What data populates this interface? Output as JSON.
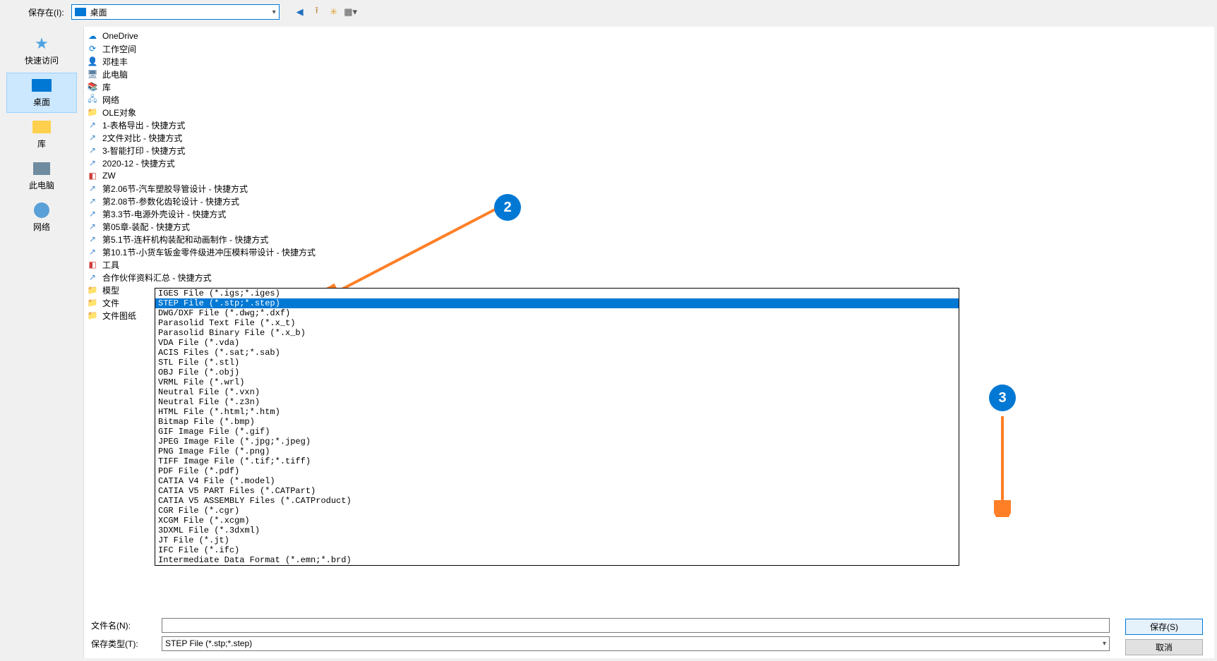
{
  "toolbar": {
    "save_in_label": "保存在(I):",
    "location": "桌面"
  },
  "sidebar": {
    "items": [
      {
        "label": "快速访问",
        "icon": "star",
        "selected": false
      },
      {
        "label": "桌面",
        "icon": "monitor",
        "selected": true
      },
      {
        "label": "库",
        "icon": "folder",
        "selected": false
      },
      {
        "label": "此电脑",
        "icon": "pc",
        "selected": false
      },
      {
        "label": "网络",
        "icon": "network",
        "selected": false
      }
    ]
  },
  "files": [
    {
      "icon": "cloud",
      "name": "OneDrive"
    },
    {
      "icon": "sync",
      "name": "工作空间"
    },
    {
      "icon": "user",
      "name": "邓桂丰"
    },
    {
      "icon": "pc",
      "name": "此电脑"
    },
    {
      "icon": "lib",
      "name": "库"
    },
    {
      "icon": "net",
      "name": "网络"
    },
    {
      "icon": "folder",
      "name": "OLE对象"
    },
    {
      "icon": "shortcut",
      "name": "1-表格导出 - 快捷方式"
    },
    {
      "icon": "shortcut",
      "name": "2文件对比 - 快捷方式"
    },
    {
      "icon": "shortcut",
      "name": "3-智能打印 - 快捷方式"
    },
    {
      "icon": "shortcut",
      "name": "2020-12 - 快捷方式"
    },
    {
      "icon": "app",
      "name": "ZW"
    },
    {
      "icon": "shortcut",
      "name": "第2.06节-汽车塑胶导管设计 - 快捷方式"
    },
    {
      "icon": "shortcut",
      "name": "第2.08节-参数化齿轮设计 - 快捷方式"
    },
    {
      "icon": "shortcut",
      "name": "第3.3节-电源外壳设计 - 快捷方式"
    },
    {
      "icon": "shortcut",
      "name": "第05章-装配 - 快捷方式"
    },
    {
      "icon": "shortcut",
      "name": "第5.1节-连杆机构装配和动画制作 - 快捷方式"
    },
    {
      "icon": "shortcut",
      "name": "第10.1节-小货车钣金零件级进冲压模料带设计 - 快捷方式"
    },
    {
      "icon": "app",
      "name": "工具"
    },
    {
      "icon": "shortcut",
      "name": "合作伙伴资料汇总 - 快捷方式"
    },
    {
      "icon": "folder",
      "name": "模型"
    },
    {
      "icon": "bluefolder",
      "name": "文件"
    },
    {
      "icon": "folder",
      "name": "文件图纸"
    }
  ],
  "dropdown": {
    "selected_index": 1,
    "options": [
      "IGES File (*.igs;*.iges)",
      "STEP File (*.stp;*.step)",
      "DWG/DXF File (*.dwg;*.dxf)",
      "Parasolid Text File (*.x_t)",
      "Parasolid Binary File (*.x_b)",
      "VDA File (*.vda)",
      "ACIS Files (*.sat;*.sab)",
      "STL File (*.stl)",
      "OBJ File (*.obj)",
      "VRML File (*.wrl)",
      "Neutral File (*.vxn)",
      "Neutral File (*.z3n)",
      "HTML File (*.html;*.htm)",
      "Bitmap File (*.bmp)",
      "GIF Image File (*.gif)",
      "JPEG Image File (*.jpg;*.jpeg)",
      "PNG Image File (*.png)",
      "TIFF Image File (*.tif;*.tiff)",
      "PDF File (*.pdf)",
      "CATIA V4 File (*.model)",
      "CATIA V5 PART Files (*.CATPart)",
      "CATIA V5 ASSEMBLY Files (*.CATProduct)",
      "CGR File (*.cgr)",
      "XCGM File (*.xcgm)",
      "3DXML File (*.3dxml)",
      "JT File (*.jt)",
      "IFC File (*.ifc)",
      "Intermediate Data Format (*.emn;*.brd)"
    ]
  },
  "fields": {
    "filename_label": "文件名(N):",
    "filename_value": "",
    "filetype_label": "保存类型(T):",
    "filetype_value": "STEP File (*.stp;*.step)"
  },
  "buttons": {
    "save": "保存(S)",
    "cancel": "取消"
  },
  "annotations": {
    "n2": "2",
    "n3": "3"
  },
  "colors": {
    "accent": "#0078d4",
    "orange": "#ff7f27",
    "selection_bg": "#cce8ff"
  }
}
